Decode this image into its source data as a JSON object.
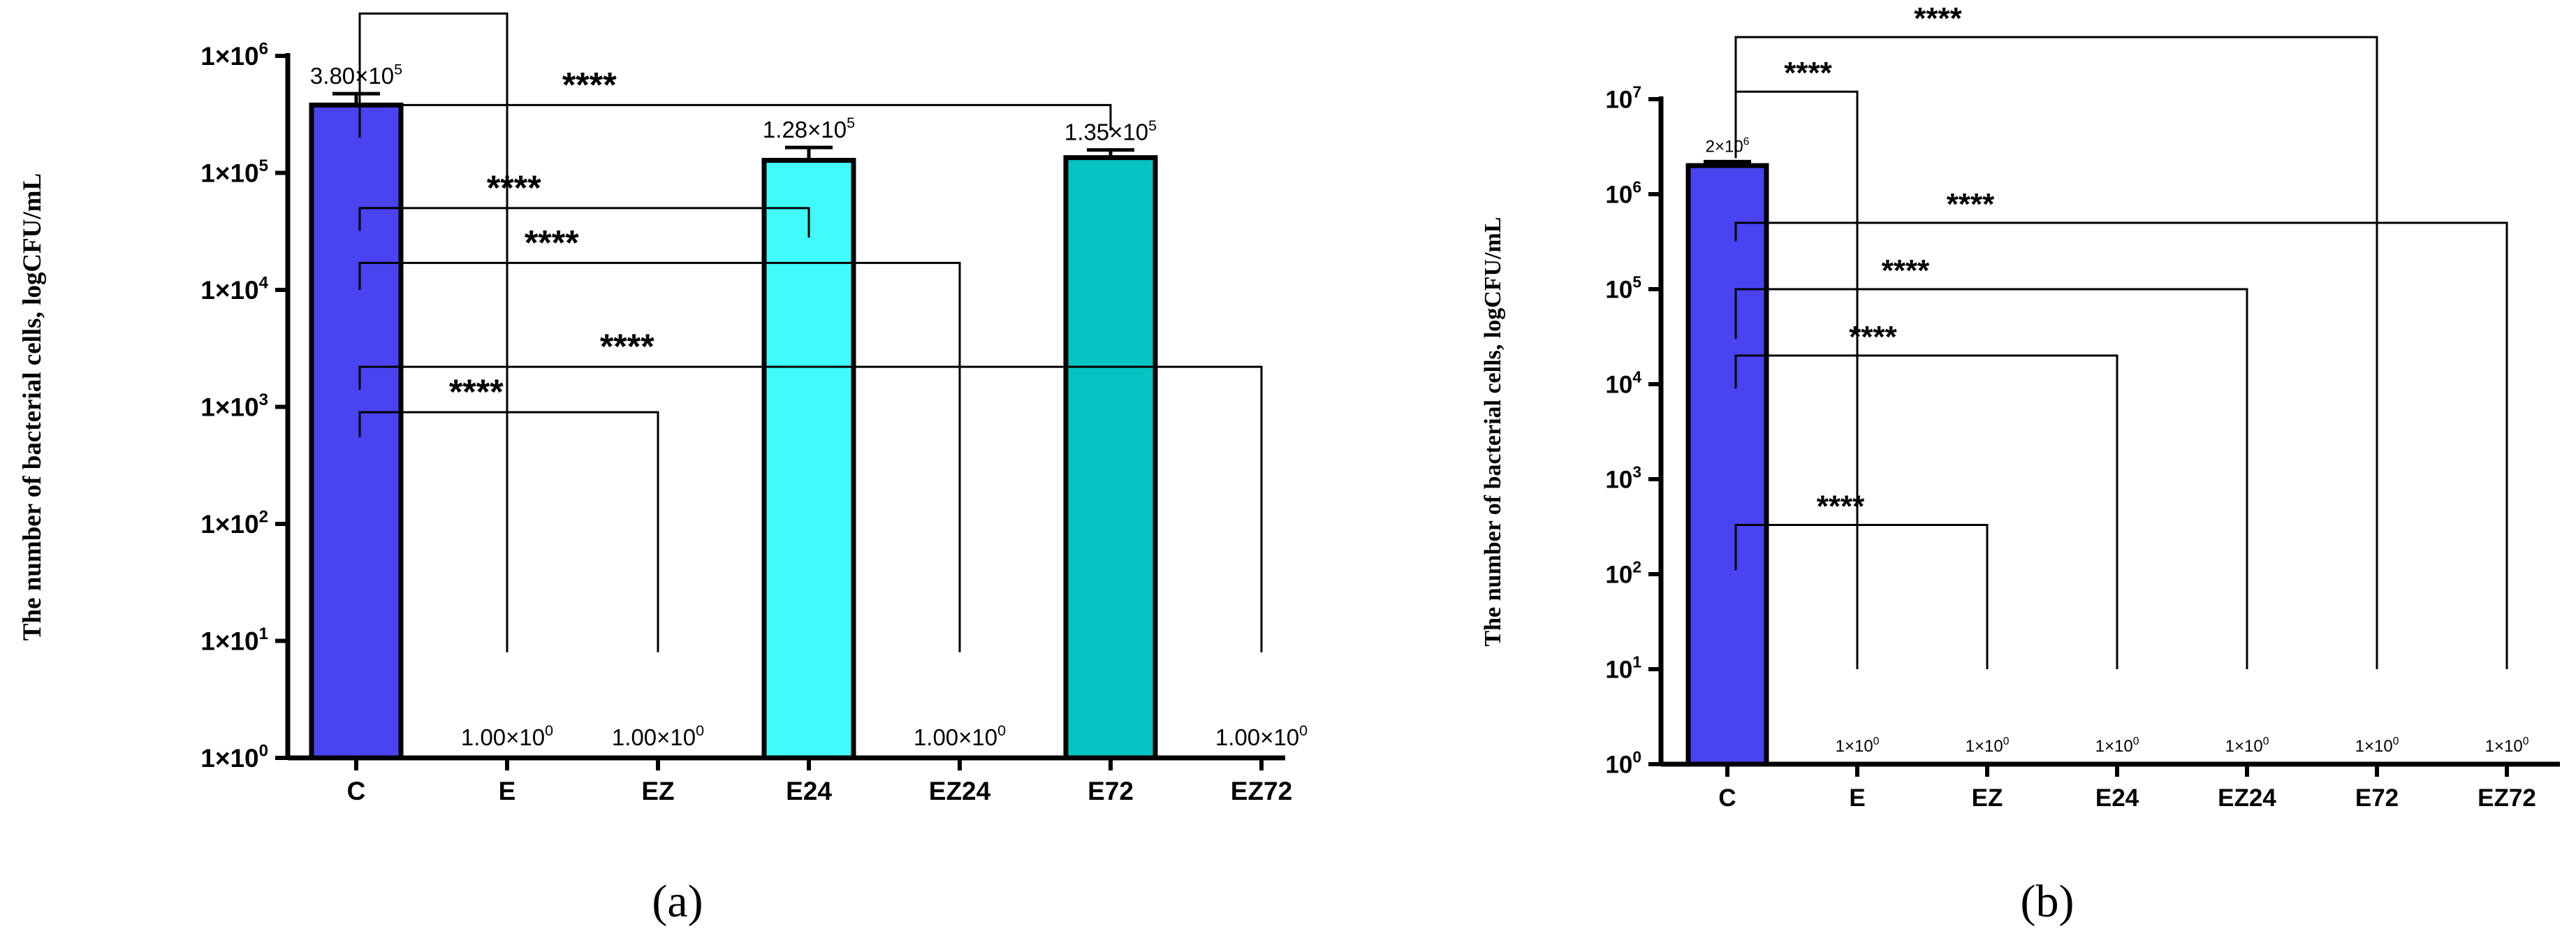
{
  "chart_data": [
    {
      "panel": "(a)",
      "type": "bar",
      "yscale": "log",
      "ylabel": "The number of bacterial cells, logCFU/mL",
      "xlabel": "",
      "ylim": [
        1,
        1000000
      ],
      "categories": [
        "C",
        "E",
        "EZ",
        "E24",
        "EZ24",
        "E72",
        "EZ72"
      ],
      "values": [
        380000,
        1,
        1,
        128000,
        1,
        135000,
        1
      ],
      "errors": [
        95000,
        0,
        0,
        37000,
        0,
        22000,
        0
      ],
      "colors": [
        "#4a43f0",
        "#ffffff",
        "#ffffff",
        "#41fbfb",
        "#ffffff",
        "#06c4c4",
        "#ffffff"
      ],
      "value_labels": [
        {
          "base": "3.80×10",
          "exp": "5"
        },
        {
          "base": "1.00×10",
          "exp": "0"
        },
        {
          "base": "1.00×10",
          "exp": "0"
        },
        {
          "base": "1.28×10",
          "exp": "5"
        },
        {
          "base": "1.00×10",
          "exp": "0"
        },
        {
          "base": "1.35×10",
          "exp": "5"
        },
        {
          "base": "1.00×10",
          "exp": "0"
        }
      ],
      "yticks": [
        {
          "value": 1,
          "base": "1×10",
          "exp": "0"
        },
        {
          "value": 10,
          "base": "1×10",
          "exp": "1"
        },
        {
          "value": 100,
          "base": "1×10",
          "exp": "2"
        },
        {
          "value": 1000,
          "base": "1×10",
          "exp": "3"
        },
        {
          "value": 10000,
          "base": "1×10",
          "exp": "4"
        },
        {
          "value": 100000,
          "base": "1×10",
          "exp": "5"
        },
        {
          "value": 1000000,
          "base": "1×10",
          "exp": "6"
        }
      ],
      "comparisons": [
        {
          "from": "C",
          "to": "E",
          "label": "****",
          "level": 2300000,
          "start": 200000,
          "end": 8
        },
        {
          "from": "C",
          "to": "E72",
          "label": "****",
          "level": 380000,
          "start": 250000,
          "end": 230000
        },
        {
          "from": "C",
          "to": "E24",
          "label": "****",
          "level": 50000,
          "start": 32000,
          "end": 28000
        },
        {
          "from": "C",
          "to": "EZ24",
          "label": "****",
          "level": 17000,
          "start": 10000,
          "end": 8
        },
        {
          "from": "C",
          "to": "EZ72",
          "label": "****",
          "level": 2200,
          "start": 1400,
          "end": 8
        },
        {
          "from": "C",
          "to": "EZ",
          "label": "****",
          "level": 900,
          "start": 550,
          "end": 8
        }
      ]
    },
    {
      "panel": "(b)",
      "type": "bar",
      "yscale": "log",
      "ylabel": "The number of bacterial cells, logCFU/mL",
      "xlabel": "",
      "ylim": [
        1,
        10000000
      ],
      "categories": [
        "C",
        "E",
        "EZ",
        "E24",
        "EZ24",
        "E72",
        "EZ72"
      ],
      "values": [
        2000000,
        1,
        1,
        1,
        1,
        1,
        1
      ],
      "errors": [
        200000,
        0,
        0,
        0,
        0,
        0,
        0
      ],
      "colors": [
        "#4a43f0",
        "#ffffff",
        "#ffffff",
        "#ffffff",
        "#ffffff",
        "#ffffff",
        "#ffffff"
      ],
      "value_labels": [
        {
          "base": "2×10",
          "exp": "6"
        },
        {
          "base": "1×10",
          "exp": "0"
        },
        {
          "base": "1×10",
          "exp": "0"
        },
        {
          "base": "1×10",
          "exp": "0"
        },
        {
          "base": "1×10",
          "exp": "0"
        },
        {
          "base": "1×10",
          "exp": "0"
        },
        {
          "base": "1×10",
          "exp": "0"
        }
      ],
      "yticks": [
        {
          "value": 1,
          "base": "10",
          "exp": "0"
        },
        {
          "value": 10,
          "base": "10",
          "exp": "1"
        },
        {
          "value": 100,
          "base": "10",
          "exp": "2"
        },
        {
          "value": 1000,
          "base": "10",
          "exp": "3"
        },
        {
          "value": 10000,
          "base": "10",
          "exp": "4"
        },
        {
          "value": 100000,
          "base": "10",
          "exp": "5"
        },
        {
          "value": 1000000,
          "base": "10",
          "exp": "6"
        },
        {
          "value": 10000000,
          "base": "10",
          "exp": "7"
        }
      ],
      "comparisons": [
        {
          "from": "C",
          "to": "E72",
          "label": "****",
          "level": 45000000,
          "start": 2400000,
          "end": 10
        },
        {
          "from": "C",
          "to": "E",
          "label": "****",
          "level": 12000000,
          "start": 2400000,
          "end": 10
        },
        {
          "from": "C",
          "to": "EZ72",
          "label": "****",
          "level": 500000,
          "start": 320000,
          "end": 10
        },
        {
          "from": "C",
          "to": "EZ24",
          "label": "****",
          "level": 100000,
          "start": 30000,
          "end": 10
        },
        {
          "from": "C",
          "to": "E24",
          "label": "****",
          "level": 20000,
          "start": 9000,
          "end": 10
        },
        {
          "from": "C",
          "to": "EZ",
          "label": "****",
          "level": 330,
          "start": 110,
          "end": 10
        }
      ]
    }
  ]
}
